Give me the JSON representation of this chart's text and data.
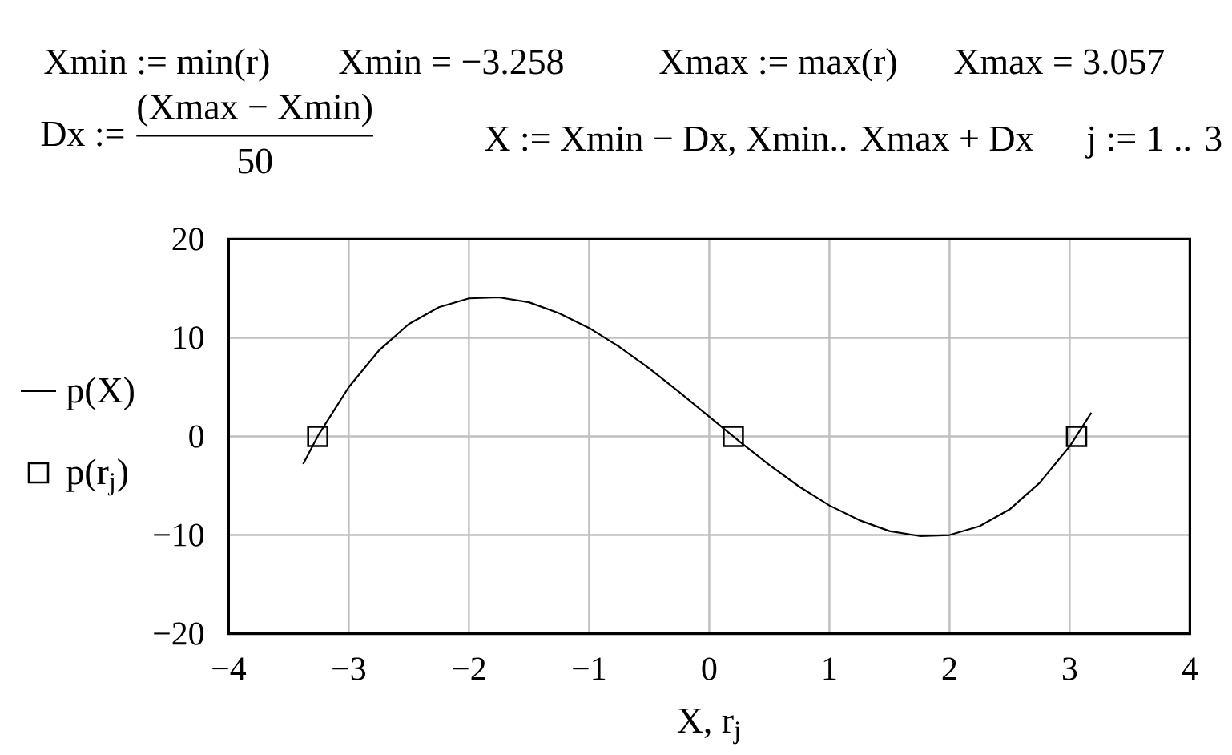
{
  "chart_data": {
    "type": "line",
    "annotations": [
      "Xmin := min(r)",
      "Xmin = −3.258",
      "Xmax := max(r)",
      "Xmax = 3.057",
      "\\text{Dx :=}\\ \\frac{\\text{(Xmax − Xmin)}}{\\text{50}}",
      "X := Xmin − Dx, Xmin.. Xmax + Dx",
      "j := 1 .. 3"
    ],
    "xlabel": "X, r$_{j}$",
    "xlim": [
      -4,
      4
    ],
    "ylim": [
      -20,
      20
    ],
    "xticks": [
      {
        "value": -4,
        "label": "−4"
      },
      {
        "value": -3,
        "label": "−3"
      },
      {
        "value": -2,
        "label": "−2"
      },
      {
        "value": -1,
        "label": "−1"
      },
      0,
      1,
      2,
      3,
      4
    ],
    "yticks": [
      {
        "value": -20,
        "label": "−20"
      },
      {
        "value": -10,
        "label": "−10"
      },
      0,
      10,
      20
    ],
    "grid": true,
    "legend": "left",
    "series": [
      {
        "name": "p(X)",
        "type": "line",
        "color": "#000000",
        "x": [
          -3.38,
          -3.25,
          -3,
          -2.75,
          -2.5,
          -2.25,
          -2,
          -1.75,
          -1.5,
          -1.25,
          -1,
          -0.75,
          -0.5,
          -0.25,
          0,
          0.25,
          0.5,
          0.75,
          1,
          1.25,
          1.5,
          1.75,
          2,
          2.25,
          2.5,
          2.75,
          3,
          3.18
        ],
        "values": [
          -2.8,
          0.2,
          5,
          8.7,
          11.4,
          13.1,
          14,
          14.1,
          13.6,
          12.5,
          11,
          9.1,
          6.9,
          4.5,
          2,
          -0.5,
          -2.9,
          -5.1,
          -7,
          -8.5,
          -9.6,
          -10.1,
          -10,
          -9.1,
          -7.4,
          -4.7,
          -1,
          2.4
        ]
      },
      {
        "name": "p(r$_{j}$)",
        "type": "scatter",
        "marker": "square",
        "color": "#000000",
        "x": [
          -3.258,
          0.2,
          3.057
        ],
        "values": [
          0,
          0,
          0
        ]
      }
    ]
  }
}
